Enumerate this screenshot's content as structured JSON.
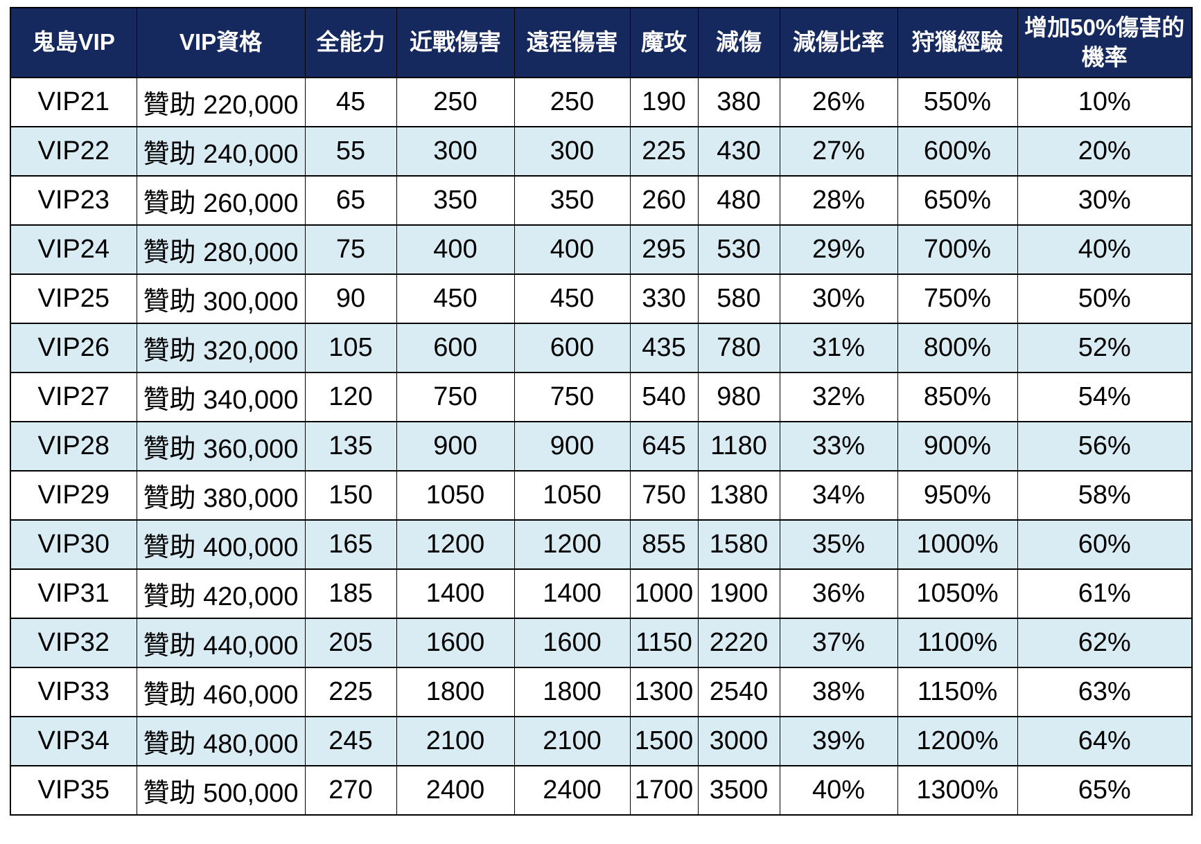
{
  "chart_data": {
    "type": "table",
    "columns": [
      "鬼島VIP",
      "VIP資格",
      "全能力",
      "近戰傷害",
      "遠程傷害",
      "魔攻",
      "減傷",
      "減傷比率",
      "狩獵經驗",
      "增加50%傷害的機率"
    ],
    "rows": [
      [
        "VIP21",
        "贊助 220,000",
        "45",
        "250",
        "250",
        "190",
        "380",
        "26%",
        "550%",
        "10%"
      ],
      [
        "VIP22",
        "贊助 240,000",
        "55",
        "300",
        "300",
        "225",
        "430",
        "27%",
        "600%",
        "20%"
      ],
      [
        "VIP23",
        "贊助 260,000",
        "65",
        "350",
        "350",
        "260",
        "480",
        "28%",
        "650%",
        "30%"
      ],
      [
        "VIP24",
        "贊助 280,000",
        "75",
        "400",
        "400",
        "295",
        "530",
        "29%",
        "700%",
        "40%"
      ],
      [
        "VIP25",
        "贊助 300,000",
        "90",
        "450",
        "450",
        "330",
        "580",
        "30%",
        "750%",
        "50%"
      ],
      [
        "VIP26",
        "贊助 320,000",
        "105",
        "600",
        "600",
        "435",
        "780",
        "31%",
        "800%",
        "52%"
      ],
      [
        "VIP27",
        "贊助 340,000",
        "120",
        "750",
        "750",
        "540",
        "980",
        "32%",
        "850%",
        "54%"
      ],
      [
        "VIP28",
        "贊助 360,000",
        "135",
        "900",
        "900",
        "645",
        "1180",
        "33%",
        "900%",
        "56%"
      ],
      [
        "VIP29",
        "贊助 380,000",
        "150",
        "1050",
        "1050",
        "750",
        "1380",
        "34%",
        "950%",
        "58%"
      ],
      [
        "VIP30",
        "贊助 400,000",
        "165",
        "1200",
        "1200",
        "855",
        "1580",
        "35%",
        "1000%",
        "60%"
      ],
      [
        "VIP31",
        "贊助 420,000",
        "185",
        "1400",
        "1400",
        "1000",
        "1900",
        "36%",
        "1050%",
        "61%"
      ],
      [
        "VIP32",
        "贊助 440,000",
        "205",
        "1600",
        "1600",
        "1150",
        "2220",
        "37%",
        "1100%",
        "62%"
      ],
      [
        "VIP33",
        "贊助 460,000",
        "225",
        "1800",
        "1800",
        "1300",
        "2540",
        "38%",
        "1150%",
        "63%"
      ],
      [
        "VIP34",
        "贊助 480,000",
        "245",
        "2100",
        "2100",
        "1500",
        "3000",
        "39%",
        "1200%",
        "64%"
      ],
      [
        "VIP35",
        "贊助 500,000",
        "270",
        "2400",
        "2400",
        "1700",
        "3500",
        "40%",
        "1300%",
        "65%"
      ]
    ],
    "layout": {
      "grid": true,
      "alternating_rows": true,
      "header_position": "top"
    },
    "colors": {
      "header_bg": "#16295e",
      "header_text": "#ffffff",
      "body_text": "#000000",
      "row_odd_bg": "#ffffff",
      "row_even_bg": "#d9ecf4",
      "border": "#000000",
      "page_bg": "#ffffff"
    }
  }
}
